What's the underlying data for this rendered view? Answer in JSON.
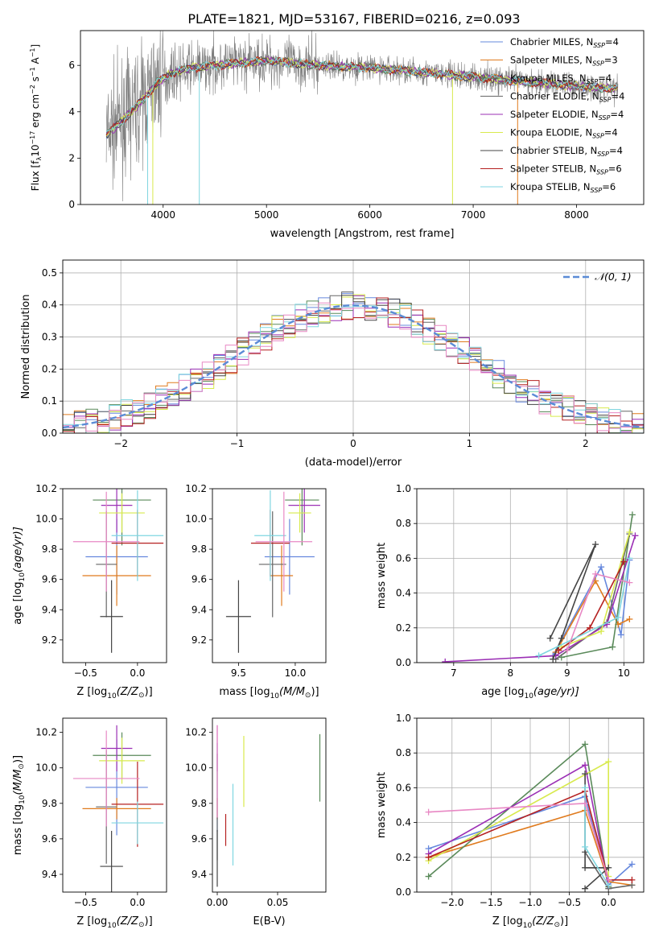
{
  "title": "PLATE=1821, MJD=53167, FIBERID=0216, z=0.093",
  "series_styles": [
    {
      "name": "Chabrier MILES, N_SSP=4",
      "legend_main": "Chabrier MILES, N",
      "legend_sub": "SSP",
      "legend_tail": "=4",
      "color": "#6688dd"
    },
    {
      "name": "Salpeter MILES, N_SSP=3",
      "legend_main": "Salpeter MILES, N",
      "legend_sub": "SSP",
      "legend_tail": "=3",
      "color": "#e07b1e"
    },
    {
      "name": "Kroupa MILES, N_SSP=4",
      "legend_main": "Kroupa MILES, N",
      "legend_sub": "SSP",
      "legend_tail": "=4",
      "color": "#5a8a5a"
    },
    {
      "name": "Chabrier ELODIE, N_SSP=4",
      "legend_main": "Chabrier ELODIE, N",
      "legend_sub": "SSP",
      "legend_tail": "=4",
      "color": "#666666"
    },
    {
      "name": "Salpeter ELODIE, N_SSP=4",
      "legend_main": "Salpeter ELODIE, N",
      "legend_sub": "SSP",
      "legend_tail": "=4",
      "color": "#9b2fb5"
    },
    {
      "name": "Kroupa ELODIE, N_SSP=4",
      "legend_main": "Kroupa ELODIE, N",
      "legend_sub": "SSP",
      "legend_tail": "=4",
      "color": "#d8ea4e"
    },
    {
      "name": "Chabrier STELIB, N_SSP=4",
      "legend_main": "Chabrier STELIB, N",
      "legend_sub": "SSP",
      "legend_tail": "=4",
      "color": "#444444"
    },
    {
      "name": "Salpeter STELIB, N_SSP=6",
      "legend_main": "Salpeter STELIB, N",
      "legend_sub": "SSP",
      "legend_tail": "=6",
      "color": "#b52020"
    },
    {
      "name": "Kroupa STELIB, N_SSP=6",
      "legend_main": "Kroupa STELIB, N",
      "legend_sub": "SSP",
      "legend_tail": "=6",
      "color": "#7fd6e0"
    }
  ],
  "extra_colors": {
    "pink": "#e888c4"
  },
  "chart_data": [
    {
      "id": "spectrum",
      "type": "line",
      "xlabel": "wavelength [Angstrom, rest frame]",
      "ylabel": "Flux [f_λ 10^-17 erg cm^-2 s^-1 A^-1]",
      "xlim": [
        3200,
        8650
      ],
      "ylim": [
        0,
        7.5
      ],
      "xticks": [
        4000,
        5000,
        6000,
        7000,
        8000
      ],
      "yticks": [
        0,
        2,
        4,
        6
      ],
      "grid": false,
      "legend_position": "top-right",
      "continuum_nodes": {
        "x": [
          3450,
          3600,
          3800,
          3950,
          4100,
          4300,
          4500,
          5000,
          5500,
          6000,
          6500,
          7000,
          7500,
          8000,
          8400
        ],
        "y": [
          3.0,
          3.6,
          4.5,
          5.3,
          5.7,
          5.9,
          6.0,
          6.2,
          6.0,
          5.9,
          5.7,
          5.5,
          5.3,
          5.1,
          5.0
        ]
      }
    },
    {
      "id": "residuals",
      "type": "histogram",
      "xlabel": "(data-model)/error",
      "ylabel": "Normed distribution",
      "xlim": [
        -2.5,
        2.5
      ],
      "ylim": [
        0,
        0.54
      ],
      "xticks": [
        -2,
        -1,
        0,
        1,
        2
      ],
      "yticks": [
        0.0,
        0.1,
        0.2,
        0.3,
        0.4,
        0.5
      ],
      "grid": true,
      "legend": "𝒩(0, 1)",
      "legend_position": "top-right",
      "bin_width": 0.1,
      "reference": {
        "name": "𝒩(0, 1)",
        "mean": 0,
        "sigma": 1
      }
    },
    {
      "id": "age_vs_Z",
      "type": "errorbar",
      "xlabel_main": "Z [log",
      "xlabel_sub": "10",
      "xlabel_tail": "(Z/Z",
      "xlabel_end": ")]",
      "ylabel": "age  [log10(age/yr)]",
      "xlim": [
        -0.72,
        0.28
      ],
      "ylim": [
        9.05,
        10.2
      ],
      "xticks": [
        -0.5,
        0.0
      ],
      "yticks": [
        9.2,
        9.4,
        9.6,
        9.8,
        10.0,
        10.2
      ],
      "grid": false,
      "points": [
        {
          "s": 0,
          "x": -0.2,
          "y": 9.75,
          "xerr": 0.3,
          "yerr": 0.25
        },
        {
          "s": 1,
          "x": -0.2,
          "y": 9.625,
          "xerr": 0.33,
          "yerr": 0.2
        },
        {
          "s": 2,
          "x": -0.15,
          "y": 10.125,
          "xerr": 0.28,
          "yerr": 0.3
        },
        {
          "s": 3,
          "x": -0.3,
          "y": 9.7,
          "xerr": 0.1,
          "yerr": 0.35
        },
        {
          "s": 4,
          "x": -0.2,
          "y": 10.09,
          "xerr": 0.15,
          "yerr": 0.18
        },
        {
          "s": 5,
          "x": -0.15,
          "y": 10.04,
          "xerr": 0.22,
          "yerr": 0.13
        },
        {
          "s": 6,
          "x": -0.25,
          "y": 9.355,
          "xerr": 0.11,
          "yerr": 0.24
        },
        {
          "s": 7,
          "x": 0.0,
          "y": 9.84,
          "xerr": 0.25,
          "yerr": 0.22
        },
        {
          "s": 8,
          "x": 0.0,
          "y": 9.89,
          "xerr": 0.25,
          "yerr": 0.3
        },
        {
          "s": "pink",
          "x": -0.3,
          "y": 9.85,
          "xerr": 0.32,
          "yerr": 0.33
        }
      ]
    },
    {
      "id": "age_vs_mass",
      "type": "errorbar",
      "xlabel_main": "mass [log",
      "xlabel_sub": "10",
      "xlabel_tail": "(M/M",
      "xlabel_end": ")]",
      "ylabel": "",
      "xlim": [
        9.27,
        10.27
      ],
      "ylim": [
        9.05,
        10.2
      ],
      "xticks": [
        9.5,
        10.0
      ],
      "yticks": [
        9.2,
        9.4,
        9.6,
        9.8,
        10.0,
        10.2
      ],
      "grid": false,
      "points": [
        {
          "s": 0,
          "x": 9.95,
          "y": 9.75,
          "xerr": 0.22,
          "yerr": 0.25
        },
        {
          "s": 1,
          "x": 9.88,
          "y": 9.625,
          "xerr": 0.1,
          "yerr": 0.2
        },
        {
          "s": 2,
          "x": 10.06,
          "y": 10.125,
          "xerr": 0.15,
          "yerr": 0.3
        },
        {
          "s": 3,
          "x": 9.8,
          "y": 9.7,
          "xerr": 0.12,
          "yerr": 0.35
        },
        {
          "s": 4,
          "x": 10.08,
          "y": 10.09,
          "xerr": 0.14,
          "yerr": 0.18
        },
        {
          "s": 5,
          "x": 10.04,
          "y": 10.04,
          "xerr": 0.1,
          "yerr": 0.13
        },
        {
          "s": 6,
          "x": 9.5,
          "y": 9.355,
          "xerr": 0.11,
          "yerr": 0.24
        },
        {
          "s": 7,
          "x": 9.78,
          "y": 9.84,
          "xerr": 0.17,
          "yerr": 0.22
        },
        {
          "s": 8,
          "x": 9.78,
          "y": 9.89,
          "xerr": 0.14,
          "yerr": 0.3
        },
        {
          "s": "pink",
          "x": 9.9,
          "y": 9.85,
          "xerr": 0.25,
          "yerr": 0.33
        }
      ]
    },
    {
      "id": "weight_vs_age",
      "type": "line",
      "xlabel_main": "age  [log",
      "xlabel_sub": "10",
      "xlabel_tail": "(age/yr)]",
      "ylabel": "mass weight",
      "xlim": [
        6.35,
        10.35
      ],
      "ylim": [
        0,
        1.0
      ],
      "xticks": [
        7,
        8,
        9,
        10
      ],
      "yticks": [
        0.0,
        0.2,
        0.4,
        0.6,
        0.8,
        1.0
      ],
      "grid": true,
      "series": [
        {
          "s": 0,
          "x": [
            8.75,
            9.6,
            9.95,
            10.1
          ],
          "y": [
            0.04,
            0.55,
            0.16,
            0.59
          ]
        },
        {
          "s": 1,
          "x": [
            8.8,
            9.5,
            9.9,
            10.1
          ],
          "y": [
            0.06,
            0.47,
            0.22,
            0.25
          ]
        },
        {
          "s": 2,
          "x": [
            8.9,
            9.8,
            10.15
          ],
          "y": [
            0.03,
            0.09,
            0.85
          ]
        },
        {
          "s": 3,
          "x": [
            8.8,
            9.7,
            10.1
          ],
          "y": [
            0.02,
            0.23,
            0.74
          ]
        },
        {
          "s": 4,
          "x": [
            6.85,
            8.8,
            9.7,
            10.2
          ],
          "y": [
            0.005,
            0.04,
            0.22,
            0.73
          ]
        },
        {
          "s": 5,
          "x": [
            8.9,
            9.6,
            10.1
          ],
          "y": [
            0.09,
            0.18,
            0.75
          ]
        },
        {
          "s": 6,
          "x": [
            8.7,
            9.5,
            8.9,
            8.75
          ],
          "y": [
            0.14,
            0.68,
            0.14,
            0.02
          ]
        },
        {
          "s": 7,
          "x": [
            8.85,
            9.4,
            10.0
          ],
          "y": [
            0.07,
            0.2,
            0.58
          ]
        },
        {
          "s": 8,
          "x": [
            8.5,
            9.9,
            10.1
          ],
          "y": [
            0.04,
            0.26,
            0.6
          ]
        },
        {
          "s": "pink",
          "x": [
            9.0,
            9.5,
            10.1
          ],
          "y": [
            0.07,
            0.51,
            0.46
          ]
        }
      ]
    },
    {
      "id": "mass_vs_Z",
      "type": "errorbar",
      "xlabel_main": "Z [log",
      "xlabel_sub": "10",
      "xlabel_tail": "(Z/Z",
      "xlabel_end": ")]",
      "ylabel": "mass [log10(M/M☉)]",
      "xlim": [
        -0.72,
        0.28
      ],
      "ylim": [
        9.3,
        10.28
      ],
      "xticks": [
        -0.5,
        0.0
      ],
      "yticks": [
        9.4,
        9.6,
        9.8,
        10.0,
        10.2
      ],
      "grid": false,
      "points": [
        {
          "s": 0,
          "x": -0.2,
          "y": 9.89,
          "xerr": 0.3,
          "yerr": 0.27
        },
        {
          "s": 1,
          "x": -0.2,
          "y": 9.77,
          "xerr": 0.33,
          "yerr": 0.06
        },
        {
          "s": 2,
          "x": -0.15,
          "y": 10.07,
          "xerr": 0.28,
          "yerr": 0.13
        },
        {
          "s": 3,
          "x": -0.3,
          "y": 9.78,
          "xerr": 0.1,
          "yerr": 0.32
        },
        {
          "s": 4,
          "x": -0.2,
          "y": 10.11,
          "xerr": 0.15,
          "yerr": 0.13
        },
        {
          "s": 5,
          "x": -0.15,
          "y": 10.04,
          "xerr": 0.22,
          "yerr": 0.13
        },
        {
          "s": 6,
          "x": -0.25,
          "y": 9.445,
          "xerr": 0.11,
          "yerr": 0.2
        },
        {
          "s": 7,
          "x": 0.0,
          "y": 9.795,
          "xerr": 0.25,
          "yerr": 0.24
        },
        {
          "s": 8,
          "x": 0.0,
          "y": 9.69,
          "xerr": 0.25,
          "yerr": 0.12
        },
        {
          "s": "pink",
          "x": -0.3,
          "y": 9.94,
          "xerr": 0.32,
          "yerr": 0.27
        }
      ]
    },
    {
      "id": "mass_vs_EBV",
      "type": "errorbar",
      "xlabel": "E(B-V)",
      "ylabel": "",
      "xlim": [
        -0.004,
        0.09
      ],
      "ylim": [
        9.3,
        10.28
      ],
      "xticks": [
        0.0,
        0.05
      ],
      "yticks": [
        9.4,
        9.6,
        9.8,
        10.0,
        10.2
      ],
      "grid": false,
      "points": [
        {
          "s": 0,
          "x": 0.0,
          "y": 9.89,
          "xerr": 0,
          "yerr": 0.25
        },
        {
          "s": 1,
          "x": 0.0,
          "y": 9.77,
          "xerr": 0,
          "yerr": 0.06
        },
        {
          "s": 2,
          "x": 0.085,
          "y": 10.0,
          "xerr": 0,
          "yerr": 0.19
        },
        {
          "s": 3,
          "x": 0.0,
          "y": 9.78,
          "xerr": 0,
          "yerr": 0.3
        },
        {
          "s": 4,
          "x": 0.0,
          "y": 10.11,
          "xerr": 0,
          "yerr": 0.13
        },
        {
          "s": 5,
          "x": 0.022,
          "y": 9.98,
          "xerr": 0,
          "yerr": 0.2
        },
        {
          "s": 6,
          "x": 0.0,
          "y": 9.49,
          "xerr": 0,
          "yerr": 0.16
        },
        {
          "s": 7,
          "x": 0.007,
          "y": 9.65,
          "xerr": 0,
          "yerr": 0.09
        },
        {
          "s": 8,
          "x": 0.013,
          "y": 9.68,
          "xerr": 0,
          "yerr": 0.23
        },
        {
          "s": "pink",
          "x": 0.0,
          "y": 9.98,
          "xerr": 0,
          "yerr": 0.26
        }
      ]
    },
    {
      "id": "weight_vs_Z",
      "type": "line",
      "xlabel_main": "Z [log",
      "xlabel_sub": "10",
      "xlabel_tail": "(Z/Z",
      "xlabel_end": ")]",
      "ylabel": "mass weight",
      "xlim": [
        -2.45,
        0.45
      ],
      "ylim": [
        0,
        1.0
      ],
      "xticks": [
        -2.0,
        -1.5,
        -1.0,
        -0.5,
        0.0
      ],
      "yticks": [
        0.0,
        0.2,
        0.4,
        0.6,
        0.8,
        1.0
      ],
      "grid": true,
      "series": [
        {
          "s": 0,
          "x": [
            -2.3,
            -0.3,
            0.0,
            0.3
          ],
          "y": [
            0.25,
            0.55,
            0.04,
            0.16
          ]
        },
        {
          "s": 1,
          "x": [
            -2.3,
            -0.3,
            0.0,
            0.3
          ],
          "y": [
            0.2,
            0.47,
            0.06,
            0.04
          ]
        },
        {
          "s": 2,
          "x": [
            -2.3,
            -0.3,
            0.0
          ],
          "y": [
            0.09,
            0.85,
            0.03
          ]
        },
        {
          "s": 3,
          "x": [
            -0.3,
            0.0,
            0.3
          ],
          "y": [
            0.23,
            0.02,
            0.04
          ]
        },
        {
          "s": 4,
          "x": [
            -2.3,
            -0.3,
            0.0
          ],
          "y": [
            0.22,
            0.73,
            0.04
          ]
        },
        {
          "s": 5,
          "x": [
            -2.3,
            0.0,
            0.0
          ],
          "y": [
            0.18,
            0.75,
            0.09
          ]
        },
        {
          "s": 6,
          "x": [
            -0.3,
            -0.3,
            0.0,
            -0.3
          ],
          "y": [
            0.68,
            0.14,
            0.14,
            0.02
          ]
        },
        {
          "s": 7,
          "x": [
            -2.3,
            -0.3,
            0.0,
            0.3
          ],
          "y": [
            0.2,
            0.58,
            0.07,
            0.07
          ]
        },
        {
          "s": 8,
          "x": [
            -0.3,
            -0.3,
            0.0
          ],
          "y": [
            0.6,
            0.26,
            0.04
          ]
        },
        {
          "s": "pink",
          "x": [
            -2.3,
            -0.3,
            0.0
          ],
          "y": [
            0.46,
            0.51,
            0.07
          ]
        }
      ]
    }
  ]
}
